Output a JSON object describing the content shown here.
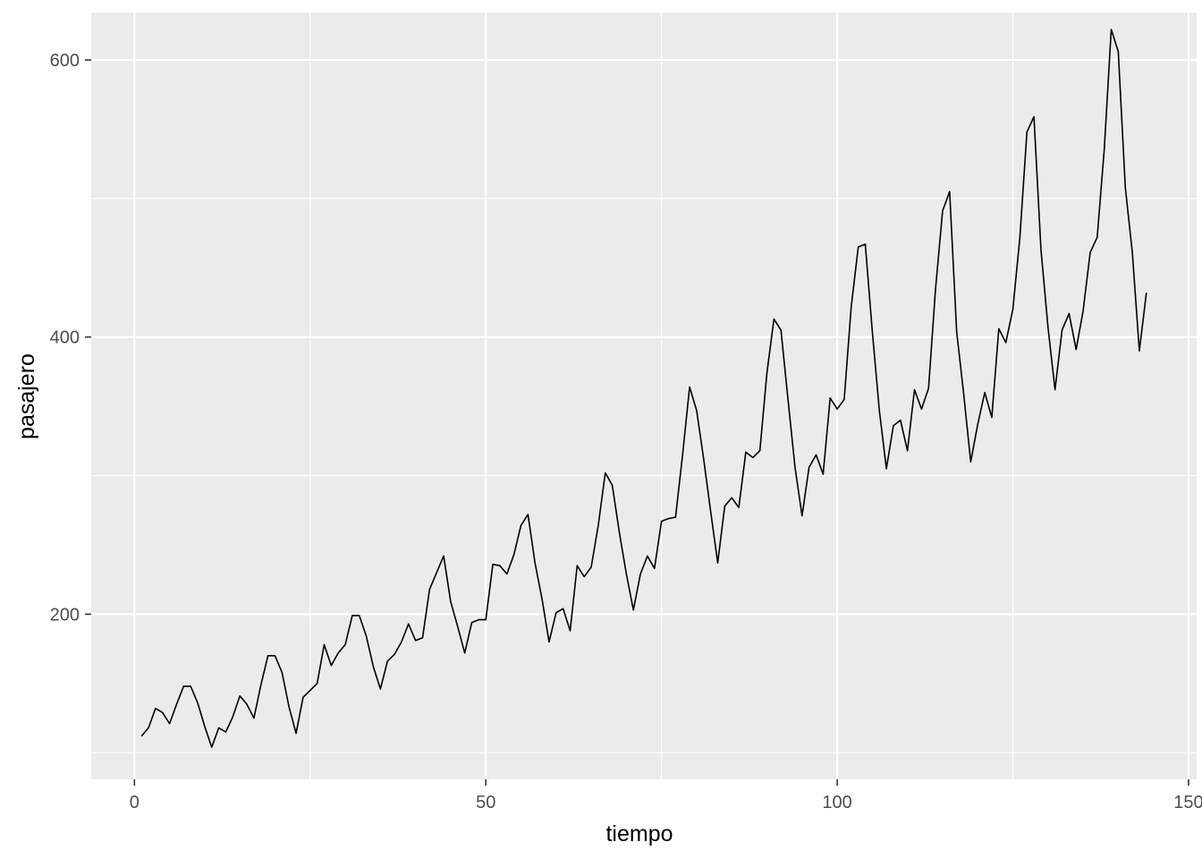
{
  "chart_data": {
    "type": "line",
    "xlabel": "tiempo",
    "ylabel": "pasajero",
    "xlim": [
      -6.15,
      151.15
    ],
    "ylim": [
      80.8,
      634.2
    ],
    "x_ticks": [
      0,
      50,
      100,
      150
    ],
    "x_tick_labels": [
      "0",
      "50",
      "100",
      "150"
    ],
    "y_ticks": [
      200,
      400,
      600
    ],
    "y_tick_labels": [
      "200",
      "400",
      "600"
    ],
    "grid": true,
    "colors": {
      "panel_background": "#ebebeb",
      "grid_major": "#ffffff",
      "line": "#000000",
      "tick_text": "#4d4d4d",
      "axis_title": "#000000"
    },
    "series": [
      {
        "x_start": 1,
        "x_step": 1,
        "values": [
          112,
          118,
          132,
          129,
          121,
          135,
          148,
          148,
          136,
          119,
          104,
          118,
          115,
          126,
          141,
          135,
          125,
          149,
          170,
          170,
          158,
          133,
          114,
          140,
          145,
          150,
          178,
          163,
          172,
          178,
          199,
          199,
          184,
          162,
          146,
          166,
          171,
          180,
          193,
          181,
          183,
          218,
          230,
          242,
          209,
          191,
          172,
          194,
          196,
          196,
          236,
          235,
          229,
          243,
          264,
          272,
          237,
          211,
          180,
          201,
          204,
          188,
          235,
          227,
          234,
          264,
          302,
          293,
          259,
          229,
          203,
          229,
          242,
          233,
          267,
          269,
          270,
          315,
          364,
          347,
          312,
          274,
          237,
          278,
          284,
          277,
          317,
          313,
          318,
          374,
          413,
          405,
          355,
          306,
          271,
          306,
          315,
          301,
          356,
          348,
          355,
          422,
          465,
          467,
          404,
          347,
          305,
          336,
          340,
          318,
          362,
          348,
          363,
          435,
          491,
          505,
          404,
          359,
          310,
          337,
          360,
          342,
          406,
          396,
          420,
          472,
          548,
          559,
          463,
          407,
          362,
          405,
          417,
          391,
          419,
          461,
          472,
          535,
          622,
          606,
          508,
          461,
          390,
          432
        ]
      }
    ]
  }
}
